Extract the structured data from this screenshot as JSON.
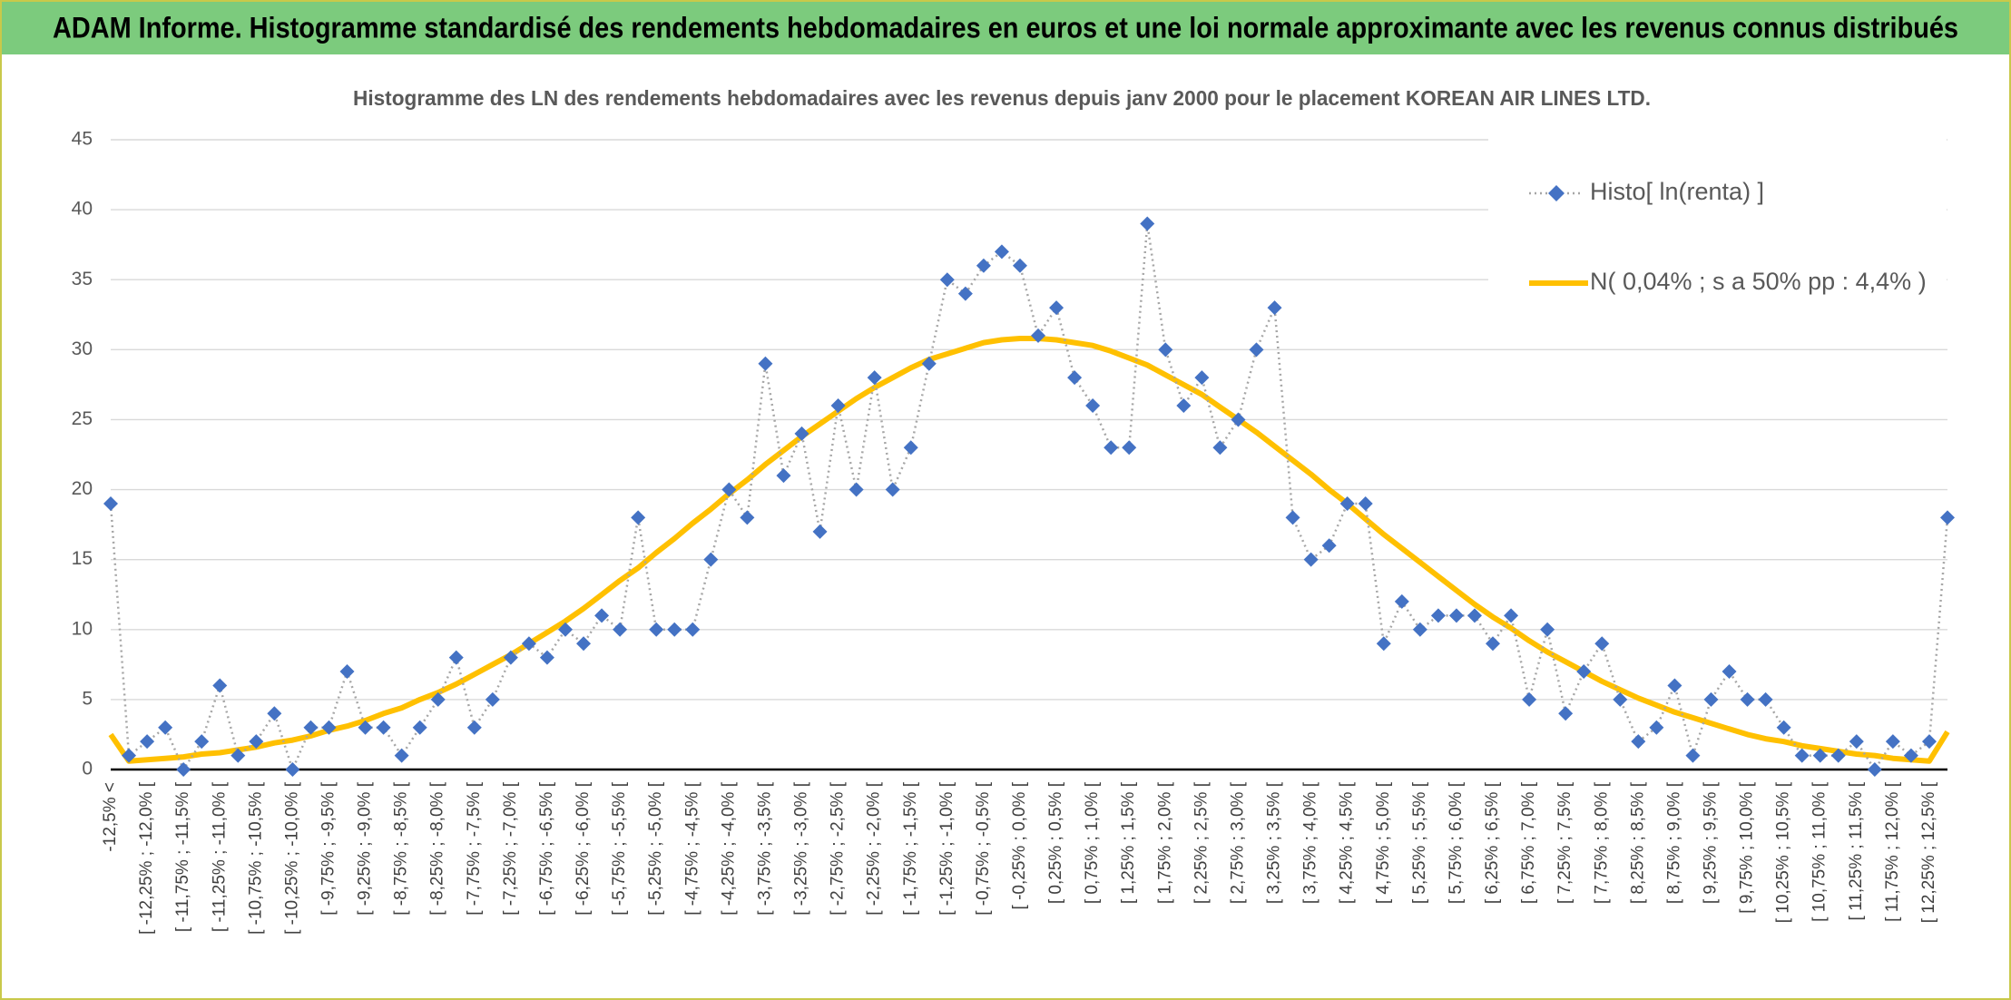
{
  "chart_data": {
    "type": "line",
    "title": "ADAM Informe. Histogramme standardisé des rendements hebdomadaires en euros et une loi normale approximante avec les revenus connus distribués",
    "subtitle": "Histogramme des LN des rendements hebdomadaires avec les revenus depuis janv 2000 pour le placement KOREAN AIR LINES LTD.",
    "categories": [
      "-12,5% <",
      null,
      "[ -12,25% ; -12,0% [",
      null,
      "[ -11,75% ; -11,5% [",
      null,
      "[ -11,25% ; -11,0% [",
      null,
      "[ -10,75% ; -10,5% [",
      null,
      "[ -10,25% ; -10,0% [",
      null,
      "[ -9,75% ; -9,5% [",
      null,
      "[ -9,25% ; -9,0% [",
      null,
      "[ -8,75% ; -8,5% [",
      null,
      "[ -8,25% ; -8,0% [",
      null,
      "[ -7,75% ; -7,5% [",
      null,
      "[ -7,25% ; -7,0% [",
      null,
      "[ -6,75% ; -6,5% [",
      null,
      "[ -6,25% ; -6,0% [",
      null,
      "[ -5,75% ; -5,5% [",
      null,
      "[ -5,25% ; -5,0% [",
      null,
      "[ -4,75% ; -4,5% [",
      null,
      "[ -4,25% ; -4,0% [",
      null,
      "[ -3,75% ; -3,5% [",
      null,
      "[ -3,25% ; -3,0% [",
      null,
      "[ -2,75% ; -2,5% [",
      null,
      "[ -2,25% ; -2,0% [",
      null,
      "[ -1,75% ; -1,5% [",
      null,
      "[ -1,25% ; -1,0% [",
      null,
      "[ -0,75% ; -0,5% [",
      null,
      "[ -0,25% ; 0,0% [",
      null,
      "[ 0,25% ; 0,5% [",
      null,
      "[ 0,75% ; 1,0% [",
      null,
      "[ 1,25% ; 1,5% [",
      null,
      "[ 1,75% ; 2,0% [",
      null,
      "[ 2,25% ; 2,5% [",
      null,
      "[ 2,75% ; 3,0% [",
      null,
      "[ 3,25% ; 3,5% [",
      null,
      "[ 3,75% ; 4,0% [",
      null,
      "[ 4,25% ; 4,5% [",
      null,
      "[ 4,75% ; 5,0% [",
      null,
      "[ 5,25% ; 5,5% [",
      null,
      "[ 5,75% ; 6,0% [",
      null,
      "[ 6,25% ; 6,5% [",
      null,
      "[ 6,75% ; 7,0% [",
      null,
      "[ 7,25% ; 7,5% [",
      null,
      "[ 7,75% ; 8,0% [",
      null,
      "[ 8,25% ; 8,5% [",
      null,
      "[ 8,75% ; 9,0% [",
      null,
      "[ 9,25% ; 9,5% [",
      null,
      "[ 9,75% ; 10,0% [",
      null,
      "[ 10,25% ; 10,5% [",
      null,
      "[ 10,75% ; 11,0% [",
      null,
      "[ 11,25% ; 11,5% [",
      null,
      "[ 11,75% ; 12,0% [",
      null,
      "[ 12,25% ; 12,5% [",
      null
    ],
    "series": [
      {
        "name": "Histo[ ln(renta) ]",
        "color": "#4472c4",
        "line_color": "#a6a6a6",
        "marker": "diamond",
        "values": [
          19,
          1,
          2,
          3,
          0,
          2,
          6,
          1,
          2,
          4,
          0,
          3,
          3,
          7,
          3,
          3,
          1,
          3,
          5,
          8,
          3,
          5,
          8,
          9,
          8,
          10,
          9,
          11,
          10,
          18,
          10,
          10,
          10,
          15,
          20,
          18,
          29,
          21,
          24,
          17,
          26,
          20,
          28,
          20,
          23,
          29,
          35,
          34,
          36,
          37,
          36,
          31,
          33,
          28,
          26,
          23,
          23,
          39,
          30,
          26,
          28,
          23,
          25,
          30,
          33,
          18,
          15,
          16,
          19,
          19,
          9,
          12,
          10,
          11,
          11,
          11,
          9,
          11,
          5,
          10,
          4,
          7,
          9,
          5,
          2,
          3,
          6,
          1,
          5,
          7,
          5,
          5,
          3,
          1,
          1,
          1,
          2,
          0,
          2,
          1,
          2,
          18
        ]
      },
      {
        "name": "N( 0,04% ; s a 50% pp : 4,4% )",
        "color": "#ffc000",
        "values": [
          2.5,
          0.6,
          0.7,
          0.8,
          0.9,
          1.1,
          1.2,
          1.4,
          1.6,
          1.9,
          2.1,
          2.4,
          2.8,
          3.1,
          3.5,
          4.0,
          4.4,
          5.0,
          5.5,
          6.1,
          6.8,
          7.5,
          8.2,
          9.0,
          9.8,
          10.6,
          11.5,
          12.5,
          13.5,
          14.4,
          15.5,
          16.5,
          17.6,
          18.6,
          19.7,
          20.7,
          21.8,
          22.8,
          23.8,
          24.7,
          25.6,
          26.5,
          27.3,
          28.0,
          28.7,
          29.3,
          29.7,
          30.1,
          30.5,
          30.7,
          30.8,
          30.8,
          30.7,
          30.5,
          30.3,
          29.9,
          29.4,
          28.9,
          28.2,
          27.5,
          26.8,
          25.9,
          25.0,
          24.1,
          23.1,
          22.1,
          21.1,
          20.0,
          19.0,
          17.9,
          16.8,
          15.8,
          14.8,
          13.8,
          12.8,
          11.8,
          10.9,
          10.1,
          9.2,
          8.4,
          7.7,
          7.0,
          6.3,
          5.7,
          5.1,
          4.6,
          4.1,
          3.7,
          3.3,
          2.9,
          2.5,
          2.2,
          2.0,
          1.7,
          1.5,
          1.3,
          1.1,
          1.0,
          0.8,
          0.7,
          0.6,
          2.7
        ]
      }
    ],
    "ylim": [
      0,
      45
    ],
    "yticks": [
      0,
      5,
      10,
      15,
      20,
      25,
      30,
      35,
      40,
      45
    ],
    "grid": true,
    "legend": "top-right"
  }
}
